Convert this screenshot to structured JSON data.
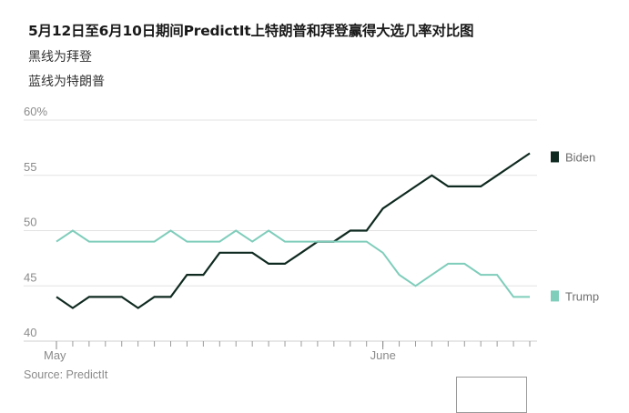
{
  "title": "5月12日至6月10日期间PredictIt上特朗普和拜登赢得大选几率对比图",
  "subtitle_lines": [
    "黑线为拜登",
    "蓝线为特朗普"
  ],
  "source": "Source: PredictIt",
  "chart_data": {
    "type": "line",
    "title": "5月12日至6月10日期间PredictIt上特朗普和拜登赢得大选几率对比图",
    "x": [
      "5/12",
      "5/13",
      "5/14",
      "5/15",
      "5/16",
      "5/17",
      "5/18",
      "5/19",
      "5/20",
      "5/21",
      "5/22",
      "5/23",
      "5/24",
      "5/25",
      "5/26",
      "5/27",
      "5/28",
      "5/29",
      "5/30",
      "5/31",
      "6/1",
      "6/2",
      "6/3",
      "6/4",
      "6/5",
      "6/6",
      "6/7",
      "6/8",
      "6/9",
      "6/10"
    ],
    "x_tick_labels": [
      "May",
      "June"
    ],
    "y_tick_labels": [
      "40",
      "45",
      "50",
      "55",
      "60%"
    ],
    "ylim": [
      40,
      60
    ],
    "grid": true,
    "legend": "right, at line ends",
    "series": [
      {
        "name": "Biden",
        "color": "#0f2a20",
        "values": [
          44,
          43,
          44,
          44,
          44,
          43,
          44,
          44,
          46,
          46,
          48,
          48,
          48,
          47,
          47,
          48,
          49,
          49,
          50,
          50,
          52,
          53,
          54,
          55,
          54,
          54,
          54,
          55,
          56,
          57
        ]
      },
      {
        "name": "Trump",
        "color": "#7fcdbb",
        "values": [
          49,
          50,
          49,
          49,
          49,
          49,
          49,
          50,
          49,
          49,
          49,
          50,
          49,
          50,
          49,
          49,
          49,
          49,
          49,
          49,
          48,
          46,
          45,
          46,
          47,
          47,
          46,
          46,
          44,
          44
        ]
      }
    ]
  }
}
